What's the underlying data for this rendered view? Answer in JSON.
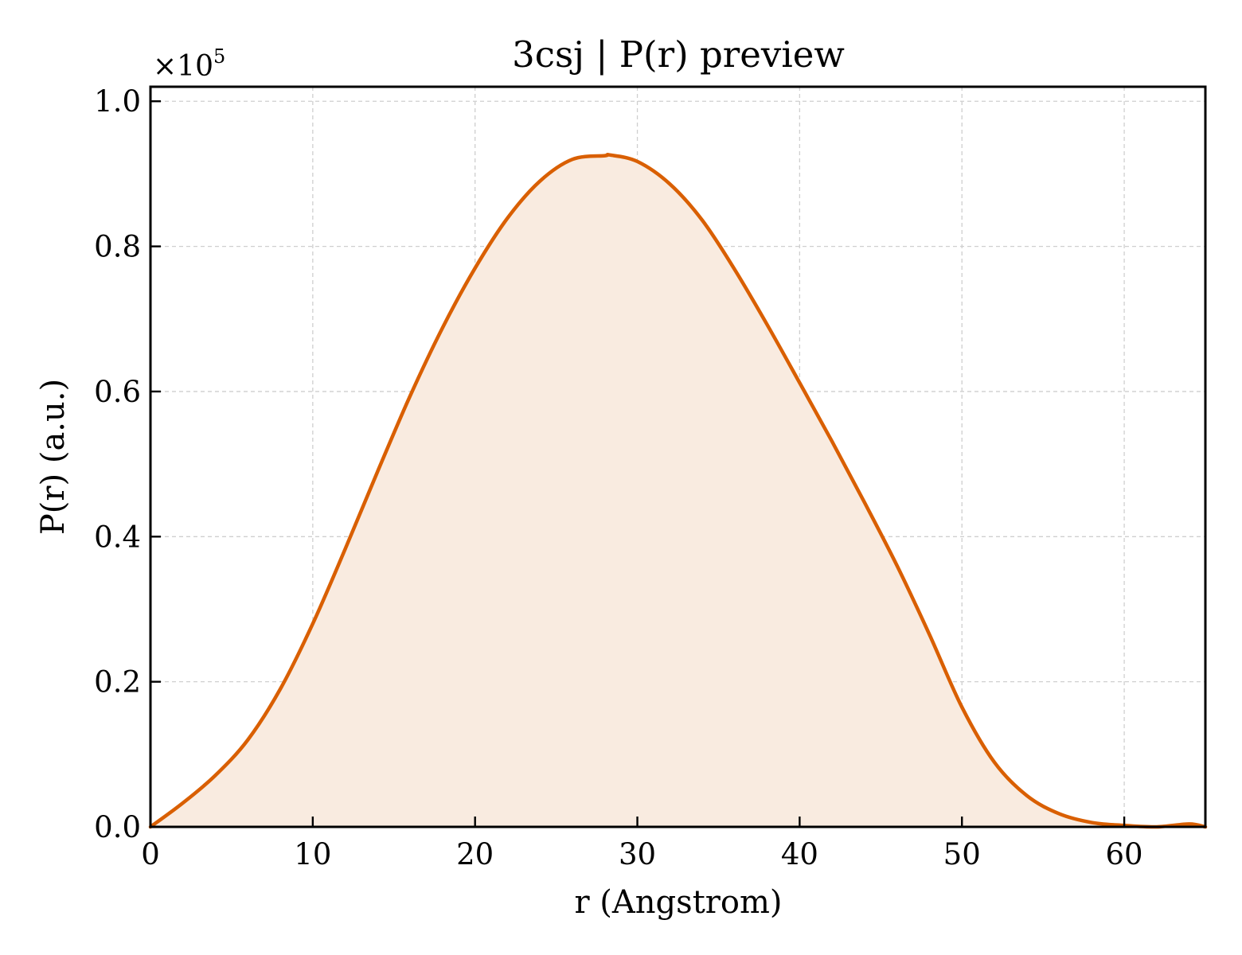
{
  "chart_data": {
    "type": "area",
    "title": "3csj | P(r) preview",
    "xlabel": "r (Angstrom)",
    "ylabel": "P(r) (a.u.)",
    "y_offset_label": "×10",
    "y_offset_exponent": "5",
    "xlim": [
      0,
      65
    ],
    "ylim": [
      0,
      1.02
    ],
    "xticks": [
      0,
      10,
      20,
      30,
      40,
      50,
      60
    ],
    "xtick_labels": [
      "0",
      "10",
      "20",
      "30",
      "40",
      "50",
      "60"
    ],
    "yticks": [
      0,
      0.2,
      0.4,
      0.6,
      0.8,
      1.0
    ],
    "ytick_labels": [
      "0.0",
      "0.2",
      "0.4",
      "0.6",
      "0.8",
      "1.0"
    ],
    "grid": true,
    "line_color": "#d95f02",
    "fill_color": "#f9ebe0",
    "series": [
      {
        "x": [
          0,
          2,
          4,
          6,
          8,
          10,
          12,
          14,
          16,
          18,
          20,
          22,
          24,
          26,
          28,
          28.3,
          30,
          32,
          34,
          36,
          38,
          40,
          42,
          44,
          46,
          48,
          50,
          52,
          54,
          56,
          58,
          60,
          62,
          64,
          65
        ],
        "y": [
          0.0,
          0.033,
          0.071,
          0.12,
          0.19,
          0.28,
          0.383,
          0.49,
          0.594,
          0.688,
          0.77,
          0.839,
          0.89,
          0.92,
          0.925,
          0.926,
          0.917,
          0.886,
          0.836,
          0.768,
          0.692,
          0.612,
          0.531,
          0.447,
          0.36,
          0.265,
          0.165,
          0.089,
          0.043,
          0.018,
          0.006,
          0.002,
          0.0,
          0.004,
          0.0
        ]
      }
    ]
  }
}
